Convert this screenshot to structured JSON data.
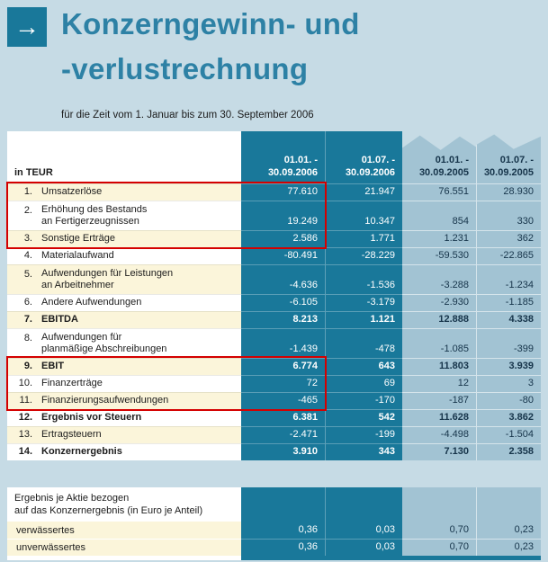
{
  "header": {
    "arrow_glyph": "→",
    "title_line1": "Konzerngewinn- und",
    "title_line2": "-verlustrechnung",
    "subtitle": "für die Zeit vom 1. Januar bis zum 30. September 2006"
  },
  "colors": {
    "teal_dark": "#19789a",
    "teal_title": "#2d81a5",
    "col_2005_blue": "#a2c3d3",
    "row_cream": "#fbf5da",
    "highlight_red": "#d40000",
    "page_background": "#c6dbe5"
  },
  "table": {
    "unit_label": "in TEUR",
    "columns": [
      {
        "line1": "01.01. -",
        "line2": "30.09.2006"
      },
      {
        "line1": "01.07. -",
        "line2": "30.09.2006"
      },
      {
        "line1": "01.01. -",
        "line2": "30.09.2005"
      },
      {
        "line1": "01.07. -",
        "line2": "30.09.2005"
      }
    ],
    "rows": [
      {
        "num": "1.",
        "label": "Umsatzerlöse",
        "label2": "",
        "values": [
          "77.610",
          "21.947",
          "76.551",
          "28.930"
        ],
        "bold": false,
        "shade": "cream"
      },
      {
        "num": "2.",
        "label": "Erhöhung des Bestands",
        "label2": "an Fertigerzeugnissen",
        "values": [
          "19.249",
          "10.347",
          "854",
          "330"
        ],
        "bold": false,
        "shade": "white"
      },
      {
        "num": "3.",
        "label": "Sonstige Erträge",
        "label2": "",
        "values": [
          "2.586",
          "1.771",
          "1.231",
          "362"
        ],
        "bold": false,
        "shade": "cream"
      },
      {
        "num": "4.",
        "label": "Materialaufwand",
        "label2": "",
        "values": [
          "-80.491",
          "-28.229",
          "-59.530",
          "-22.865"
        ],
        "bold": false,
        "shade": "white"
      },
      {
        "num": "5.",
        "label": "Aufwendungen für Leistungen",
        "label2": "an Arbeitnehmer",
        "values": [
          "-4.636",
          "-1.536",
          "-3.288",
          "-1.234"
        ],
        "bold": false,
        "shade": "cream"
      },
      {
        "num": "6.",
        "label": "Andere Aufwendungen",
        "label2": "",
        "values": [
          "-6.105",
          "-3.179",
          "-2.930",
          "-1.185"
        ],
        "bold": false,
        "shade": "white"
      },
      {
        "num": "7.",
        "label": "EBITDA",
        "label2": "",
        "values": [
          "8.213",
          "1.121",
          "12.888",
          "4.338"
        ],
        "bold": true,
        "shade": "cream"
      },
      {
        "num": "8.",
        "label": "Aufwendungen für",
        "label2": "planmäßige Abschreibungen",
        "values": [
          "-1.439",
          "-478",
          "-1.085",
          "-399"
        ],
        "bold": false,
        "shade": "white"
      },
      {
        "num": "9.",
        "label": "EBIT",
        "label2": "",
        "values": [
          "6.774",
          "643",
          "11.803",
          "3.939"
        ],
        "bold": true,
        "shade": "cream"
      },
      {
        "num": "10.",
        "label": "Finanzerträge",
        "label2": "",
        "values": [
          "72",
          "69",
          "12",
          "3"
        ],
        "bold": false,
        "shade": "white"
      },
      {
        "num": "11.",
        "label": "Finanzierungsaufwendungen",
        "label2": "",
        "values": [
          "-465",
          "-170",
          "-187",
          "-80"
        ],
        "bold": false,
        "shade": "cream"
      },
      {
        "num": "12.",
        "label": "Ergebnis vor Steuern",
        "label2": "",
        "values": [
          "6.381",
          "542",
          "11.628",
          "3.862"
        ],
        "bold": true,
        "shade": "white"
      },
      {
        "num": "13.",
        "label": "Ertragsteuern",
        "label2": "",
        "values": [
          "-2.471",
          "-199",
          "-4.498",
          "-1.504"
        ],
        "bold": false,
        "shade": "cream"
      },
      {
        "num": "14.",
        "label": "Konzernergebnis",
        "label2": "",
        "values": [
          "3.910",
          "343",
          "7.130",
          "2.358"
        ],
        "bold": true,
        "shade": "white"
      }
    ]
  },
  "eps": {
    "label_line1": "Ergebnis je Aktie bezogen",
    "label_line2": "auf das Konzernergebnis (in Euro je Anteil)",
    "rows": [
      {
        "label": "verwässertes",
        "values": [
          "0,36",
          "0,03",
          "0,70",
          "0,23"
        ]
      },
      {
        "label": "unverwässertes",
        "values": [
          "0,36",
          "0,03",
          "0,70",
          "0,23"
        ]
      }
    ]
  }
}
